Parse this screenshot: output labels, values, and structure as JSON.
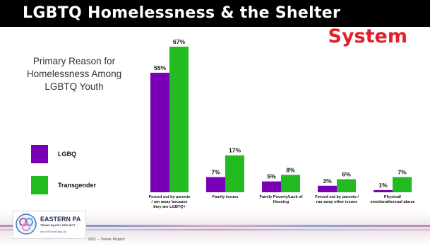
{
  "slide": {
    "title": "LGBTQ Homelessness & the Shelter",
    "title_accent": "System",
    "subtitle": "Primary Reason for Homelessness Among LGBTQ Youth",
    "source": "2021 – Trevor Project"
  },
  "logo": {
    "name": "EASTERN PA",
    "subtitle": "TRANS EQUITY PROJECT",
    "url": "www.PATransEquity.org"
  },
  "colors": {
    "lgbq": "#7a00b8",
    "transgender": "#22bb22",
    "title_accent": "#e0202a",
    "header": "#000000"
  },
  "chart_data": {
    "type": "bar",
    "categories": [
      [
        "Forced out by parents",
        "/ ran away because",
        "they are LGBTQ+"
      ],
      [
        "Family issues"
      ],
      [
        "Family Poverty/Lack of",
        "Housing"
      ],
      [
        "Forced out by parents /",
        "ran away other issues"
      ],
      [
        "Physical/",
        "emotional/sexual abuse"
      ]
    ],
    "series": [
      {
        "name": "LGBQ",
        "color": "#7a00b8",
        "values": [
          55,
          7,
          5,
          3,
          1
        ],
        "labels": [
          "55%",
          "7%",
          "5%",
          "3%",
          "1%"
        ]
      },
      {
        "name": "Transgender",
        "color": "#22bb22",
        "values": [
          67,
          17,
          8,
          6,
          7
        ],
        "labels": [
          "67%",
          "17%",
          "8%",
          "6%",
          "7%"
        ]
      }
    ],
    "ylim": [
      0,
      67
    ],
    "grid": false,
    "legend": "left"
  }
}
